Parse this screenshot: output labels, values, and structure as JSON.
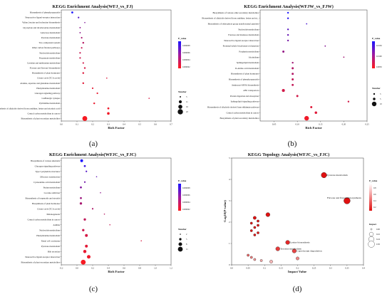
{
  "panels": [
    {
      "letter": "(a)",
      "title": "KEGG Enrichment Analysis(WFJ_vs_FJ)",
      "xlabel": "Rich Factor",
      "pvalue_title": "P_value",
      "pvalue_ticks": [
        "0.000008",
        "0.000006",
        "0.000004",
        "0.000002"
      ],
      "number_title": "Number",
      "number_sizes": [
        3,
        11,
        16,
        22
      ],
      "xticks": [
        "0.0",
        "0.1",
        "0.2",
        "0.3",
        "0.4",
        "0.5",
        "0.6",
        "0.7"
      ],
      "xlim": [
        0,
        0.7
      ]
    },
    {
      "letter": "(b)",
      "title": "KEGG Enrichment Analysis(WFJW_vs_FJW)",
      "xlabel": "Rich Factor",
      "pvalue_title": "P_value",
      "pvalue_ticks": [
        "0.0150",
        "0.0100",
        "0.0050"
      ],
      "number_title": "Number",
      "number_sizes": [
        3,
        5,
        10
      ],
      "xticks": [
        "0.05",
        "0.10",
        "0.15",
        "0.20",
        "0.25"
      ],
      "xlim": [
        0.02,
        0.25
      ]
    },
    {
      "letter": "(c)",
      "title": "KEGG Enrichment Analysis(WFJC_vs_FJC)",
      "xlabel": "Rich Factor",
      "pvalue_title": "P_value",
      "pvalue_ticks": [
        "0.000008",
        "0.000006",
        "0.000004",
        "0.000002"
      ],
      "number_title": "Number",
      "number_sizes": [
        2,
        5,
        8,
        11
      ],
      "xticks": [
        "-0.2",
        "0.0",
        "0.2",
        "0.4",
        "0.6",
        "0.8",
        "1.0",
        "1.2"
      ],
      "xlim": [
        -0.2,
        1.2
      ]
    },
    {
      "letter": "(d)",
      "title": "KEGG Topology Analysis(WFJC_vs_FJC)",
      "xlabel": "Impact Value",
      "ylabel": "-Log10(P-value)",
      "pvalue_title": "P_value",
      "pvalue_ticks": [
        "0.8",
        "0.6",
        "0.4",
        "0.2"
      ],
      "impact_title": "Impact",
      "impact_sizes": [
        "0.00",
        "0.16",
        "0.24",
        "0.30"
      ],
      "xticks": [
        "0.0",
        "0.05",
        "0.1",
        "0.15",
        "0.2",
        "0.25",
        "0.3",
        "0.35",
        "0.4"
      ],
      "yticks": [
        "0",
        "1",
        "2",
        "3",
        "4",
        "5"
      ]
    }
  ],
  "chart_data": [
    {
      "type": "scatter",
      "title": "KEGG Enrichment Analysis(WFJ_vs_FJ)",
      "xlabel": "Rich Factor",
      "xlim": [
        0,
        0.7
      ],
      "colorbar": "P_value",
      "categories": [
        "Biosynthesis of phenylpropanoids",
        "Neuroactive ligand-receptor interaction",
        "Valine, leucine and isoleucine biosynthesis",
        "Glyoxylate and dicarboxylate metabolism",
        "Galactose metabolism",
        "Pyruvate metabolism",
        "Two-component system",
        "Other carbon fixation pathways",
        "Nucleotide metabolism",
        "Propanoate metabolism",
        "Cysteine and methionine metabolism",
        "Flavone and flavonol biosynthesis",
        "Biosynthesis of plant hormones",
        "Citrate cycle (TCA cycle)",
        "Alanine, aspartate and glutamate metabolism",
        "Phenylalanine metabolism",
        "Glucagon signaling pathway",
        "GABAergic synapse",
        "Pyrimidine metabolism",
        "Biosynthesis of alkaloids derived from ornithine, lysine and nicotinic acid",
        "Central carbon metabolism in cancer",
        "Biosynthesis of plant secondary metabolites"
      ],
      "x": [
        0.07,
        0.11,
        0.15,
        0.12,
        0.12,
        0.13,
        0.14,
        0.13,
        0.12,
        0.12,
        0.14,
        0.15,
        0.14,
        0.29,
        0.14,
        0.2,
        0.23,
        0.56,
        0.21,
        0.3,
        0.3,
        0.15
      ],
      "number": [
        6,
        4,
        2,
        3,
        3,
        4,
        5,
        4,
        4,
        4,
        4,
        5,
        5,
        2,
        5,
        4,
        4,
        2,
        5,
        6,
        9,
        20
      ],
      "p_value": [
        8e-06,
        6e-06,
        4.5e-06,
        4e-06,
        4e-06,
        3e-06,
        2.5e-06,
        2e-06,
        2e-06,
        1.8e-06,
        1.6e-06,
        1.5e-06,
        1.2e-06,
        1.2e-06,
        1e-06,
        9e-07,
        8e-07,
        1.4e-06,
        7e-07,
        6e-07,
        5e-07,
        3e-07
      ]
    },
    {
      "type": "scatter",
      "title": "KEGG Enrichment Analysis(WFJW_vs_FJW)",
      "xlabel": "Rich Factor",
      "xlim": [
        0.02,
        0.25
      ],
      "colorbar": "P_value",
      "categories": [
        "Biosynthesis of various other secondary metabolites",
        "Biosynthesis of alkaloids derived from ornithine, lysine and ni...",
        "Biosynthesis of siderophore group nonribosomal peptides",
        "Nucleotide metabolism",
        "Fructose and mannose metabolism",
        "Neuroactive ligand-receptor interaction",
        "Proximal tubule bicarbonate reclamation",
        "Porphyrin metabolism",
        "Alcoholism",
        "Sphingolipid metabolism",
        "D-Amino acid metabolism",
        "Biosynthesis of plant hormones",
        "Biosynthesis of phenylpropanoids",
        "Aminoacyl-tRNA biosynthesis",
        "ABC transporters",
        "Protein digestion and absorption",
        "Sphingolipid signaling pathway",
        "Biosynthesis of alkaloids derived from shikimate pathway",
        "Central carbon metabolism in cancer",
        "Biosynthesis of plant secondary metabolites"
      ],
      "x": [
        0.08,
        0.08,
        0.12,
        0.08,
        0.08,
        0.08,
        0.16,
        0.07,
        0.2,
        0.09,
        0.09,
        0.09,
        0.09,
        0.09,
        0.07,
        0.1,
        0.21,
        0.13,
        0.14,
        0.12
      ],
      "number": [
        3,
        3,
        2,
        3,
        3,
        3,
        2,
        4,
        2,
        3,
        4,
        4,
        4,
        4,
        6,
        4,
        3,
        4,
        5,
        10
      ],
      "p_value": [
        0.015,
        0.014,
        0.012,
        0.011,
        0.01,
        0.009,
        0.008,
        0.007,
        0.006,
        0.006,
        0.005,
        0.005,
        0.004,
        0.004,
        0.003,
        0.003,
        0.003,
        0.002,
        0.002,
        0.001
      ]
    },
    {
      "type": "scatter",
      "title": "KEGG Enrichment Analysis(WFJC_vs_FJC)",
      "xlabel": "Rich Factor",
      "xlim": [
        -0.2,
        1.2
      ],
      "colorbar": "P_value",
      "categories": [
        "Biosynthesis of various alkaloids",
        "Glucagon signaling pathway",
        "Type I polyketide structures",
        "Olfactory transduction",
        "Cyanoamino acid metabolism",
        "Purine metabolism",
        "Cocaine addiction",
        "Biosynthesis of terpenoids and steroids",
        "Biosynthesis of plant hormones",
        "Citrate cycle (TCA cycle)",
        "Melanogenesis",
        "Central carbon metabolism in cancer",
        "Asthma",
        "Nucleotide metabolism",
        "Phenylalanine metabolism",
        "Renal cell carcinoma",
        "Pyruvate metabolism",
        "Bile secretion",
        "Neuroactive ligand-receptor interaction",
        "Biosynthesis of plant secondary metabolites"
      ],
      "x": [
        0.06,
        0.1,
        0.12,
        0.25,
        0.1,
        0.05,
        0.3,
        0.05,
        0.05,
        0.2,
        0.35,
        0.1,
        0.42,
        0.08,
        0.12,
        0.82,
        0.12,
        0.1,
        0.15,
        0.08
      ],
      "number": [
        6,
        4,
        3,
        2,
        3,
        4,
        2,
        4,
        5,
        3,
        2,
        5,
        2,
        5,
        6,
        2,
        6,
        7,
        8,
        11
      ],
      "p_value": [
        8e-06,
        7e-06,
        6e-06,
        5.5e-06,
        5e-06,
        4.5e-06,
        4e-06,
        3.5e-06,
        3e-06,
        2.8e-06,
        2.5e-06,
        2.2e-06,
        2e-06,
        1.8e-06,
        1.5e-06,
        1.3e-06,
        1e-06,
        8e-07,
        6e-07,
        3e-07
      ]
    },
    {
      "type": "scatter",
      "title": "KEGG Topology Analysis(WFJC_vs_FJC)",
      "xlabel": "Impact Value",
      "ylabel": "-Log10(P-value)",
      "xlim": [
        0,
        0.4
      ],
      "ylim": [
        0,
        5
      ],
      "colorbar": "P_value",
      "points": [
        {
          "label": "Pyruvate metabolism",
          "x": 0.28,
          "y": 4.2,
          "impact": 0.24,
          "p": 6e-05
        },
        {
          "label": "Flavone and flavonol biosynthesis",
          "x": 0.35,
          "y": 3.0,
          "impact": 0.3,
          "p": 0.001
        },
        {
          "label": "Lysine biosynthesis",
          "x": 0.17,
          "y": 1.05,
          "impact": 0.16,
          "p": 0.09
        },
        {
          "label": "Tyrosine metabolism",
          "x": 0.14,
          "y": 0.75,
          "impact": 0.16,
          "p": 0.18
        },
        {
          "label": "Caprolactam degradation",
          "x": 0.19,
          "y": 0.65,
          "impact": 0.16,
          "p": 0.22
        },
        {
          "label": "",
          "x": 0.11,
          "y": 2.35,
          "impact": 0.16,
          "p": 0.004
        },
        {
          "label": "",
          "x": 0.07,
          "y": 2.2,
          "impact": 0.1,
          "p": 0.006
        },
        {
          "label": "",
          "x": 0.08,
          "y": 2.05,
          "impact": 0.05,
          "p": 0.009
        },
        {
          "label": "",
          "x": 0.06,
          "y": 1.95,
          "impact": 0.05,
          "p": 0.011
        },
        {
          "label": "",
          "x": 0.08,
          "y": 1.85,
          "impact": 0.05,
          "p": 0.014
        },
        {
          "label": "",
          "x": 0.07,
          "y": 1.75,
          "impact": 0.05,
          "p": 0.018
        },
        {
          "label": "",
          "x": 0.06,
          "y": 1.6,
          "impact": 0.05,
          "p": 0.025
        },
        {
          "label": "",
          "x": 0.08,
          "y": 1.5,
          "impact": 0.05,
          "p": 0.032
        },
        {
          "label": "",
          "x": 0.07,
          "y": 1.4,
          "impact": 0.05,
          "p": 0.04
        },
        {
          "label": "",
          "x": 0.05,
          "y": 0.45,
          "impact": 0.05,
          "p": 0.35
        },
        {
          "label": "",
          "x": 0.06,
          "y": 0.35,
          "impact": 0.05,
          "p": 0.45
        },
        {
          "label": "",
          "x": 0.07,
          "y": 0.25,
          "impact": 0.05,
          "p": 0.56
        },
        {
          "label": "",
          "x": 0.09,
          "y": 0.2,
          "impact": 0.05,
          "p": 0.63
        },
        {
          "label": "",
          "x": 0.12,
          "y": 0.15,
          "impact": 0.1,
          "p": 0.7
        },
        {
          "label": "",
          "x": 0.2,
          "y": 0.3,
          "impact": 0.1,
          "p": 0.5
        }
      ]
    }
  ],
  "colors": {
    "high": "#1a14ff",
    "low": "#ff1a1a"
  }
}
